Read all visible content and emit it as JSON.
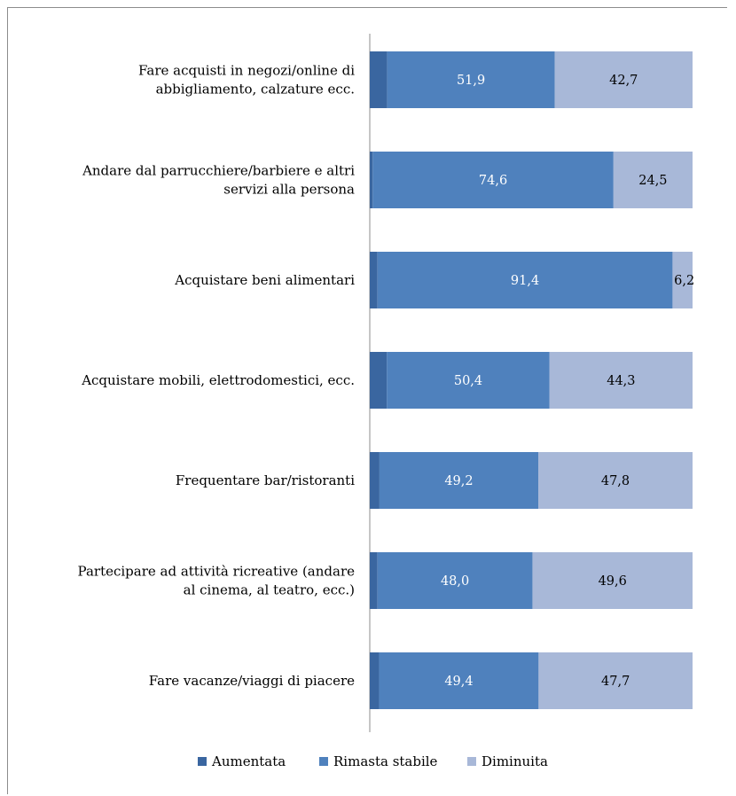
{
  "chart_data": {
    "type": "bar",
    "stacked": true,
    "orientation": "horizontal",
    "categories": [
      [
        "Fare acquisti in negozi/online di",
        "abbigliamento, calzature ecc."
      ],
      [
        "Andare dal parrucchiere/barbiere e altri",
        "servizi alla persona"
      ],
      [
        "Acquistare beni alimentari"
      ],
      [
        "Acquistare mobili, elettrodomestici, ecc."
      ],
      [
        "Frequentare bar/ristoranti"
      ],
      [
        "Partecipare ad attività ricreative (andare",
        "al cinema, al teatro, ecc.)"
      ],
      [
        "Fare vacanze/viaggi di piacere"
      ]
    ],
    "series": [
      {
        "name": "Aumentata",
        "color": "#3a66a0",
        "values": [
          5.4,
          0.9,
          2.4,
          5.3,
          3.0,
          2.4,
          2.9
        ],
        "labels": [
          "5,4",
          "0,9",
          "2,4",
          "5,3",
          "3,0",
          "2,4",
          "2,9"
        ]
      },
      {
        "name": "Rimasta stabile",
        "color": "#4f81bd",
        "values": [
          51.9,
          74.6,
          91.4,
          50.4,
          49.2,
          48.0,
          49.4
        ],
        "labels": [
          "51,9",
          "74,6",
          "91,4",
          "50,4",
          "49,2",
          "48,0",
          "49,4"
        ]
      },
      {
        "name": "Diminuita",
        "color": "#a8b8d8",
        "values": [
          42.7,
          24.5,
          6.2,
          44.3,
          47.8,
          49.6,
          47.7
        ],
        "labels": [
          "42,7",
          "24,5",
          "6,2",
          "44,3",
          "47,8",
          "49,6",
          "47,7"
        ]
      }
    ],
    "xlim": [
      0,
      100
    ],
    "grid": false,
    "legend": "bottom"
  }
}
